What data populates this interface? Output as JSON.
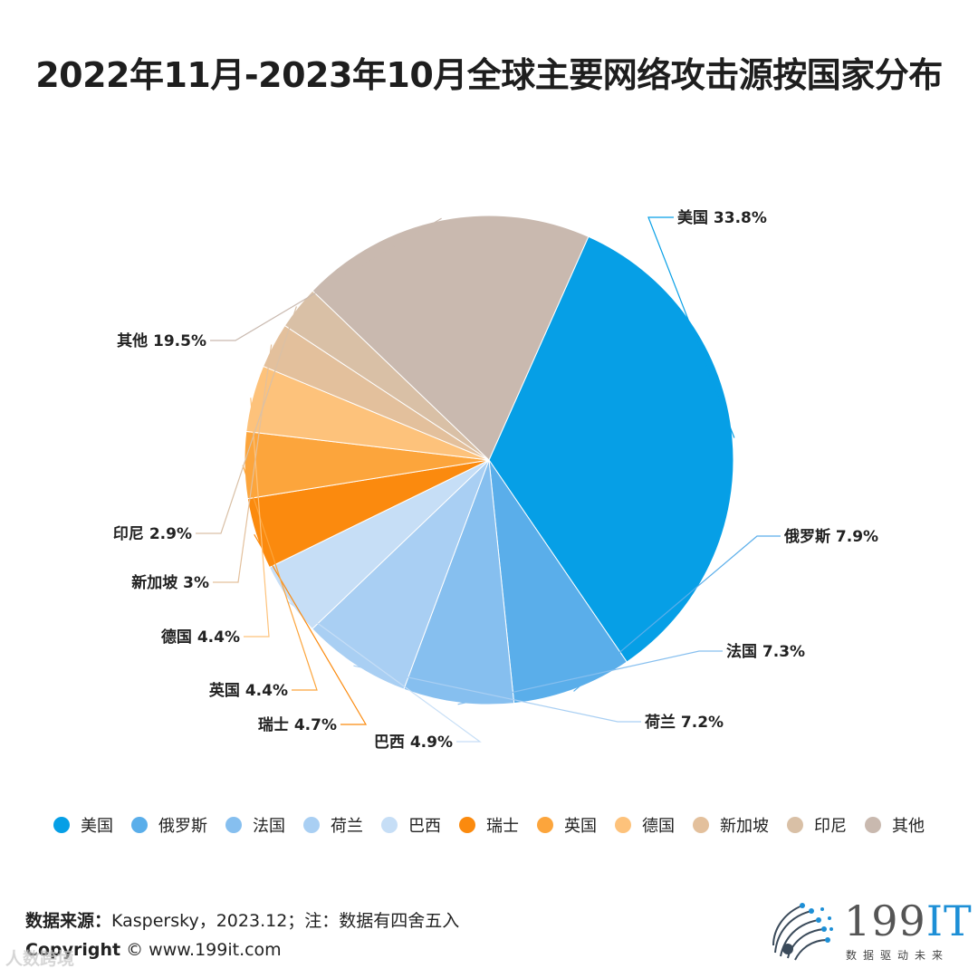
{
  "title": "2022年11月-2023年10月全球主要网络攻击源按国家分布",
  "chart_data": {
    "type": "pie",
    "title": "2022年11月-2023年10月全球主要网络攻击源按国家分布",
    "unit": "%",
    "slices": [
      {
        "name": "美国",
        "value": 33.8,
        "label": "美国 33.8%",
        "color": "#069fe6"
      },
      {
        "name": "俄罗斯",
        "value": 7.9,
        "label": "俄罗斯 7.9%",
        "color": "#5aaeea"
      },
      {
        "name": "法国",
        "value": 7.3,
        "label": "法国 7.3%",
        "color": "#86bfef"
      },
      {
        "name": "荷兰",
        "value": 7.2,
        "label": "荷兰 7.2%",
        "color": "#a9cff3"
      },
      {
        "name": "巴西",
        "value": 4.9,
        "label": "巴西 4.9%",
        "color": "#c6def6"
      },
      {
        "name": "瑞士",
        "value": 4.7,
        "label": "瑞士 4.7%",
        "color": "#fb8a0e"
      },
      {
        "name": "英国",
        "value": 4.4,
        "label": "英国 4.4%",
        "color": "#fca53c"
      },
      {
        "name": "德国",
        "value": 4.4,
        "label": "德国 4.4%",
        "color": "#fdc27b"
      },
      {
        "name": "新加坡",
        "value": 3,
        "label": "新加坡 3%",
        "color": "#e3c09c"
      },
      {
        "name": "印尼",
        "value": 2.9,
        "label": "印尼 2.9%",
        "color": "#d9c0a6"
      },
      {
        "name": "其他",
        "value": 19.5,
        "label": "其他 19.5%",
        "color": "#c9b9af"
      }
    ],
    "legend_position": "bottom"
  },
  "legend": [
    "美国",
    "俄罗斯",
    "法国",
    "荷兰",
    "巴西",
    "瑞士",
    "英国",
    "德国",
    "新加坡",
    "印尼",
    "其他"
  ],
  "footer": {
    "source_label": "数据来源：",
    "source_text": "Kaspersky，2023.12；注：数据有四舍五入",
    "copyright_label": "Copyright",
    "copyright_text": "©  www.199it.com"
  },
  "logo": {
    "main": "199",
    "accent": "IT",
    "sub": "数据驱动未来"
  },
  "watermark": "人数跨境"
}
